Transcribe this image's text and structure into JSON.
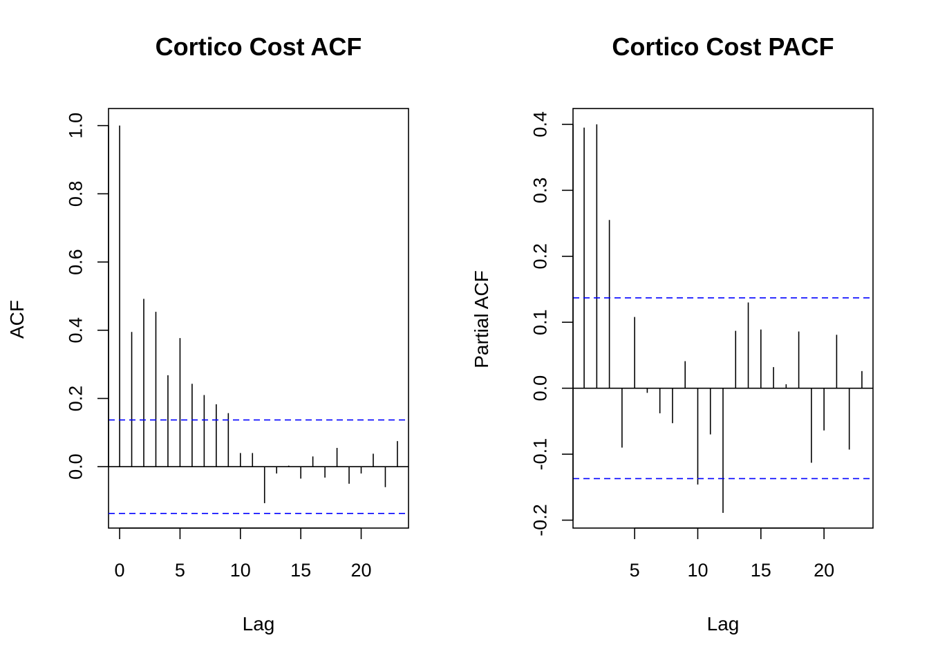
{
  "chart_data": [
    {
      "type": "bar",
      "title": "Cortico Cost ACF",
      "xlabel": "Lag",
      "ylabel": "ACF",
      "xlim": [
        -0.92,
        23.92
      ],
      "ylim": [
        -0.18,
        1.05
      ],
      "x_ticks": [
        {
          "value": 0,
          "label": "0"
        },
        {
          "value": 5,
          "label": "5"
        },
        {
          "value": 10,
          "label": "10"
        },
        {
          "value": 15,
          "label": "15"
        },
        {
          "value": 20,
          "label": "20"
        }
      ],
      "y_ticks": [
        {
          "value": 0.0,
          "label": "0.0"
        },
        {
          "value": 0.2,
          "label": "0.2"
        },
        {
          "value": 0.4,
          "label": "0.4"
        },
        {
          "value": 0.6,
          "label": "0.6"
        },
        {
          "value": 0.8,
          "label": "0.8"
        },
        {
          "value": 1.0,
          "label": "1.0"
        }
      ],
      "lags": [
        0,
        1,
        2,
        3,
        4,
        5,
        6,
        7,
        8,
        9,
        10,
        11,
        12,
        13,
        14,
        15,
        16,
        17,
        18,
        19,
        20,
        21,
        22,
        23
      ],
      "values": [
        1.0,
        0.395,
        0.492,
        0.454,
        0.268,
        0.377,
        0.243,
        0.21,
        0.183,
        0.157,
        0.04,
        0.04,
        -0.107,
        -0.02,
        0.003,
        -0.035,
        0.03,
        -0.032,
        0.055,
        -0.05,
        -0.02,
        0.038,
        -0.06,
        0.075
      ],
      "confidence_bound": 0.137,
      "zero_line": true,
      "colors": {
        "bars": "#000000",
        "confidence": "#0000ff"
      }
    },
    {
      "type": "bar",
      "title": "Cortico Cost PACF",
      "xlabel": "Lag",
      "ylabel": "Partial ACF",
      "xlim": [
        0.12,
        23.88
      ],
      "ylim": [
        -0.212,
        0.424
      ],
      "x_ticks": [
        {
          "value": 5,
          "label": "5"
        },
        {
          "value": 10,
          "label": "10"
        },
        {
          "value": 15,
          "label": "15"
        },
        {
          "value": 20,
          "label": "20"
        }
      ],
      "y_ticks": [
        {
          "value": -0.2,
          "label": "-0.2"
        },
        {
          "value": -0.1,
          "label": "-0.1"
        },
        {
          "value": 0.0,
          "label": "0.0"
        },
        {
          "value": 0.1,
          "label": "0.1"
        },
        {
          "value": 0.2,
          "label": "0.2"
        },
        {
          "value": 0.3,
          "label": "0.3"
        },
        {
          "value": 0.4,
          "label": "0.4"
        }
      ],
      "lags": [
        1,
        2,
        3,
        4,
        5,
        6,
        7,
        8,
        9,
        10,
        11,
        12,
        13,
        14,
        15,
        16,
        17,
        18,
        19,
        20,
        21,
        22,
        23
      ],
      "values": [
        0.395,
        0.4,
        0.255,
        -0.09,
        0.108,
        -0.007,
        -0.038,
        -0.053,
        0.041,
        -0.146,
        -0.07,
        -0.189,
        0.087,
        0.13,
        0.089,
        0.032,
        0.006,
        0.086,
        -0.113,
        -0.064,
        0.081,
        -0.093,
        0.026
      ],
      "confidence_bound": 0.137,
      "zero_line": true,
      "colors": {
        "bars": "#000000",
        "confidence": "#0000ff"
      }
    }
  ]
}
